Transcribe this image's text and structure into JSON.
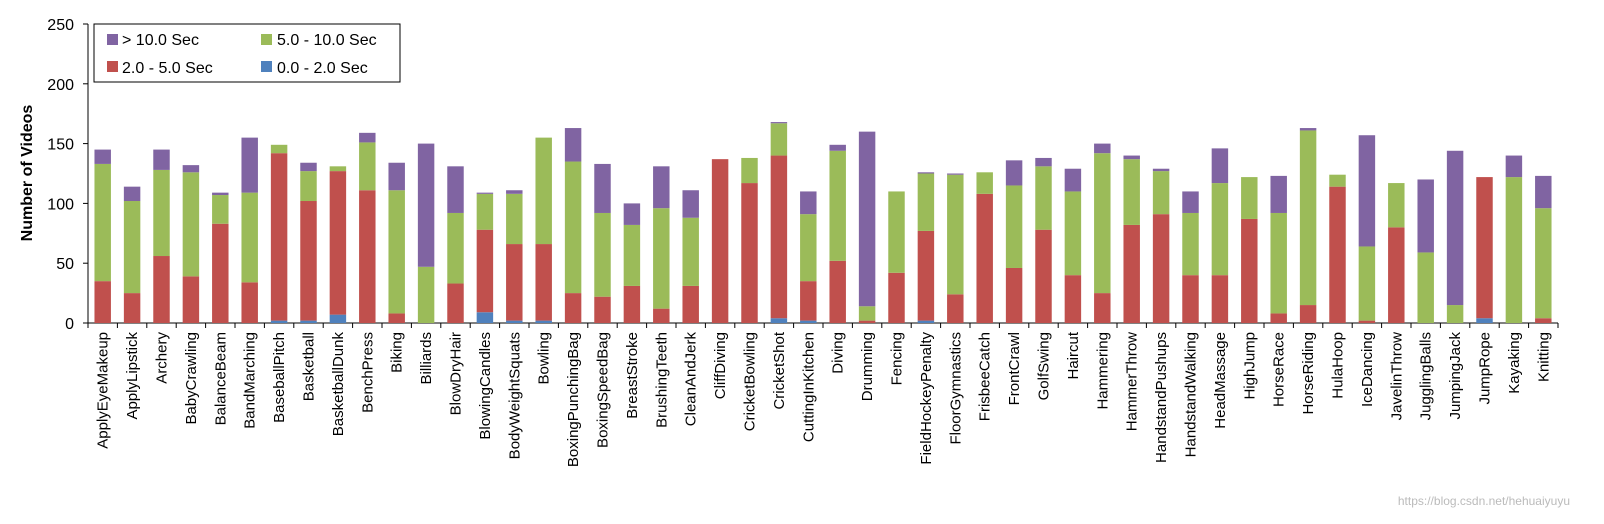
{
  "chart_data": {
    "type": "bar",
    "stacked": true,
    "title": "",
    "xlabel": "",
    "ylabel": "Number of Videos",
    "ylim": [
      0,
      250
    ],
    "yticks": [
      0,
      50,
      100,
      150,
      200,
      250
    ],
    "grid": false,
    "legend_position": "top-left",
    "categories": [
      "ApplyEyeMakeup",
      "ApplyLipstick",
      "Archery",
      "BabyCrawling",
      "BalanceBeam",
      "BandMarching",
      "BaseballPitch",
      "Basketball",
      "BasketballDunk",
      "BenchPress",
      "Biking",
      "Billiards",
      "BlowDryHair",
      "BlowingCandles",
      "BodyWeightSquats",
      "Bowling",
      "BoxingPunchingBag",
      "BoxingSpeedBag",
      "BreastStroke",
      "BrushingTeeth",
      "CleanAndJerk",
      "CliffDiving",
      "CricketBowling",
      "CricketShot",
      "CuttingInKitchen",
      "Diving",
      "Drumming",
      "Fencing",
      "FieldHockeyPenalty",
      "FloorGymnastics",
      "FrisbeeCatch",
      "FrontCrawl",
      "GolfSwing",
      "Haircut",
      "Hammering",
      "HammerThrow",
      "HandstandPushups",
      "HandstandWalking",
      "HeadMassage",
      "HighJump",
      "HorseRace",
      "HorseRiding",
      "HulaHoop",
      "IceDancing",
      "JavelinThrow",
      "JugglingBalls",
      "JumpingJack",
      "JumpRope",
      "Kayaking",
      "Knitting"
    ],
    "series": [
      {
        "name": "0.0 - 2.0 Sec",
        "color": "#4f81bd",
        "values": [
          0,
          0,
          0,
          0,
          0,
          0,
          2,
          2,
          7,
          0,
          0,
          0,
          0,
          9,
          2,
          2,
          0,
          0,
          0,
          0,
          0,
          0,
          0,
          4,
          2,
          0,
          0,
          0,
          2,
          0,
          0,
          0,
          0,
          0,
          0,
          0,
          0,
          0,
          0,
          0,
          0,
          0,
          0,
          0,
          0,
          0,
          0,
          4,
          0,
          0
        ]
      },
      {
        "name": "2.0 - 5.0 Sec",
        "color": "#c0504d",
        "values": [
          35,
          25,
          56,
          39,
          83,
          34,
          140,
          100,
          120,
          111,
          8,
          0,
          33,
          69,
          64,
          64,
          25,
          22,
          31,
          12,
          31,
          137,
          117,
          136,
          33,
          52,
          2,
          42,
          75,
          24,
          108,
          46,
          78,
          40,
          25,
          82,
          91,
          40,
          40,
          87,
          8,
          15,
          114,
          2,
          80,
          0,
          0,
          118,
          0,
          4
        ]
      },
      {
        "name": "5.0 - 10.0 Sec",
        "color": "#9bbb59",
        "values": [
          98,
          77,
          72,
          87,
          24,
          75,
          7,
          25,
          4,
          40,
          103,
          47,
          59,
          30,
          42,
          89,
          110,
          70,
          51,
          84,
          57,
          0,
          21,
          27,
          56,
          92,
          12,
          68,
          48,
          100,
          18,
          69,
          53,
          70,
          117,
          55,
          36,
          52,
          77,
          35,
          84,
          146,
          10,
          62,
          37,
          59,
          15,
          0,
          122,
          92
        ]
      },
      {
        "name": "> 10.0 Sec",
        "color": "#8064a2",
        "values": [
          12,
          12,
          17,
          6,
          2,
          46,
          0,
          7,
          0,
          8,
          23,
          103,
          39,
          1,
          3,
          0,
          28,
          41,
          18,
          35,
          23,
          0,
          0,
          1,
          19,
          5,
          146,
          0,
          1,
          1,
          0,
          21,
          7,
          19,
          8,
          3,
          2,
          18,
          29,
          0,
          31,
          2,
          0,
          93,
          0,
          61,
          129,
          0,
          18,
          27
        ]
      }
    ]
  },
  "legend": {
    "items": [
      {
        "label": "> 10.0 Sec",
        "color": "#8064a2"
      },
      {
        "label": "5.0 - 10.0 Sec",
        "color": "#9bbb59"
      },
      {
        "label": "2.0 - 5.0 Sec",
        "color": "#c0504d"
      },
      {
        "label": "0.0 - 2.0 Sec",
        "color": "#4f81bd"
      }
    ]
  },
  "watermark": "https://blog.csdn.net/hehuaiyuyu"
}
